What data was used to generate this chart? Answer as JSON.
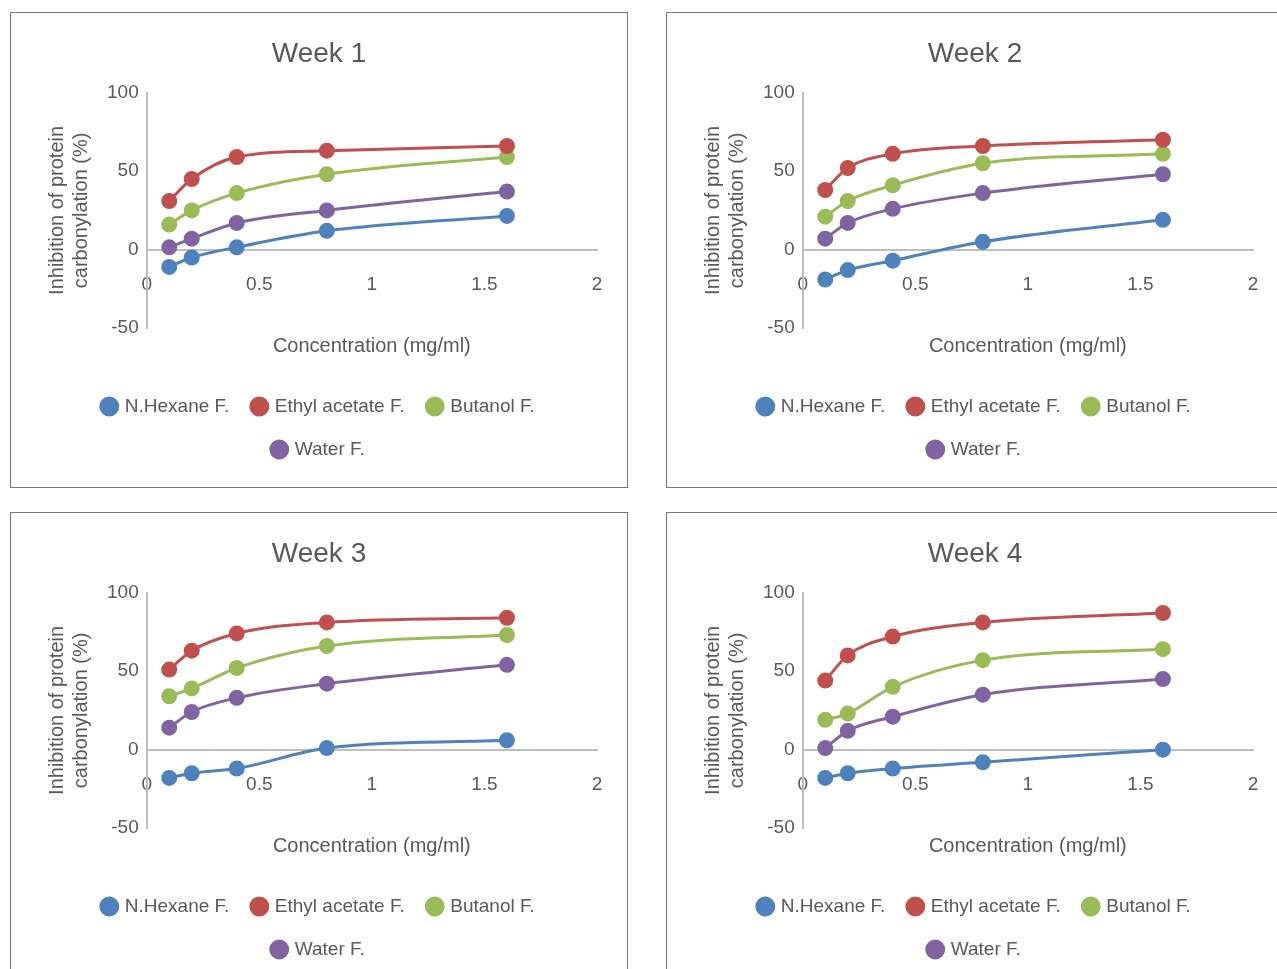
{
  "chart_data": [
    {
      "type": "line",
      "title": "Week 1",
      "xlabel": "Concentration (mg/ml)",
      "ylabel": "Inhibition of protein carbonylation (%)",
      "x": [
        0.1,
        0.2,
        0.4,
        0.8,
        1.6
      ],
      "xlim": [
        0,
        2
      ],
      "xticks": [
        0,
        0.5,
        1,
        1.5,
        2
      ],
      "ylim": [
        -50,
        100
      ],
      "yticks": [
        -50,
        0,
        50,
        100
      ],
      "grid": false,
      "legend": "bottom",
      "marker": "circle",
      "line_style": "solid",
      "series": [
        {
          "name": "N.Hexane F.",
          "color": "#4f81bd",
          "values": [
            -11,
            -5,
            1.5,
            12,
            21.5
          ]
        },
        {
          "name": "Ethyl acetate F.",
          "color": "#c0504d",
          "values": [
            31,
            45,
            59,
            63,
            66
          ]
        },
        {
          "name": "Butanol F.",
          "color": "#9bbb59",
          "values": [
            16,
            25,
            36,
            48,
            59
          ]
        },
        {
          "name": "Water F.",
          "color": "#8064a2",
          "values": [
            1.5,
            7,
            17,
            25,
            37
          ]
        }
      ]
    },
    {
      "type": "line",
      "title": "Week 2",
      "xlabel": "Concentration (mg/ml)",
      "ylabel": "Inhibition of protein carbonylation (%)",
      "x": [
        0.1,
        0.2,
        0.4,
        0.8,
        1.6
      ],
      "xlim": [
        0,
        2
      ],
      "xticks": [
        0,
        0.5,
        1,
        1.5,
        2
      ],
      "ylim": [
        -50,
        100
      ],
      "yticks": [
        -50,
        0,
        50,
        100
      ],
      "grid": false,
      "legend": "bottom",
      "marker": "circle",
      "line_style": "solid",
      "series": [
        {
          "name": "N.Hexane F.",
          "color": "#4f81bd",
          "values": [
            -19,
            -13,
            -7,
            5,
            19
          ]
        },
        {
          "name": "Ethyl acetate F.",
          "color": "#c0504d",
          "values": [
            38,
            52,
            61,
            66,
            70
          ]
        },
        {
          "name": "Butanol F.",
          "color": "#9bbb59",
          "values": [
            21,
            31,
            41,
            55,
            61
          ]
        },
        {
          "name": "Water F.",
          "color": "#8064a2",
          "values": [
            7,
            17,
            26,
            36,
            48
          ]
        }
      ]
    },
    {
      "type": "line",
      "title": "Week 3",
      "xlabel": "Concentration (mg/ml)",
      "ylabel": "Inhibition of protein carbonylation (%)",
      "x": [
        0.1,
        0.2,
        0.4,
        0.8,
        1.6
      ],
      "xlim": [
        0,
        2
      ],
      "xticks": [
        0,
        0.5,
        1,
        1.5,
        2
      ],
      "ylim": [
        -50,
        100
      ],
      "yticks": [
        -50,
        0,
        50,
        100
      ],
      "grid": false,
      "legend": "bottom",
      "marker": "circle",
      "line_style": "solid",
      "series": [
        {
          "name": "N.Hexane F.",
          "color": "#4f81bd",
          "values": [
            -18,
            -15,
            -12,
            1,
            6
          ]
        },
        {
          "name": "Ethyl acetate F.",
          "color": "#c0504d",
          "values": [
            51,
            63,
            74,
            81,
            84
          ]
        },
        {
          "name": "Butanol F.",
          "color": "#9bbb59",
          "values": [
            34,
            39,
            52,
            66,
            73
          ]
        },
        {
          "name": "Water F.",
          "color": "#8064a2",
          "values": [
            14,
            24,
            33,
            42,
            54
          ]
        }
      ]
    },
    {
      "type": "line",
      "title": "Week 4",
      "xlabel": "Concentration (mg/ml)",
      "ylabel": "Inhibition of protein carbonylation (%)",
      "x": [
        0.1,
        0.2,
        0.4,
        0.8,
        1.6
      ],
      "xlim": [
        0,
        2
      ],
      "xticks": [
        0,
        0.5,
        1,
        1.5,
        2
      ],
      "ylim": [
        -50,
        100
      ],
      "yticks": [
        -50,
        0,
        50,
        100
      ],
      "grid": false,
      "legend": "bottom",
      "marker": "circle",
      "line_style": "solid",
      "series": [
        {
          "name": "N.Hexane F.",
          "color": "#4f81bd",
          "values": [
            -18,
            -15,
            -12,
            -8,
            0
          ]
        },
        {
          "name": "Ethyl acetate F.",
          "color": "#c0504d",
          "values": [
            44,
            60,
            72,
            81,
            87
          ]
        },
        {
          "name": "Butanol F.",
          "color": "#9bbb59",
          "values": [
            19,
            23,
            40,
            57,
            64
          ]
        },
        {
          "name": "Water F.",
          "color": "#8064a2",
          "values": [
            1,
            12,
            21,
            35,
            45
          ]
        }
      ]
    }
  ]
}
